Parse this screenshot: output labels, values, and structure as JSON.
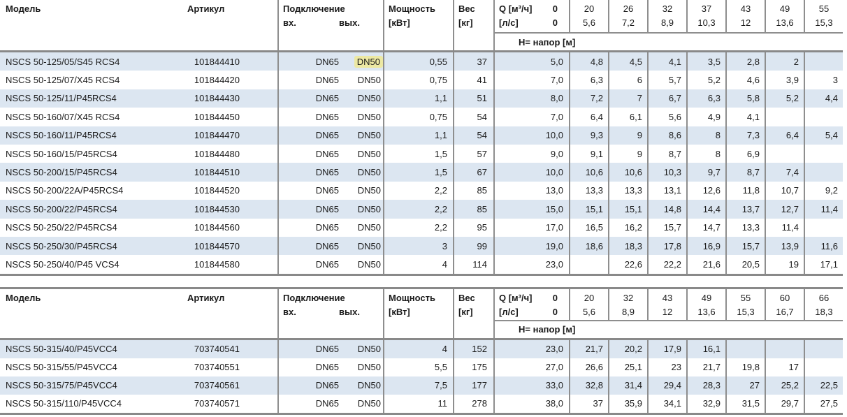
{
  "colors": {
    "row_stripe": "#dce6f1",
    "grid_line": "#8e8e8e",
    "thick_line": "#898989",
    "search_highlight": "#ece8a3",
    "text": "#1a1a1a"
  },
  "tables": [
    {
      "headers": {
        "model": "Модель",
        "article": "Артикул",
        "connection": "Подключение",
        "inlet": "вх.",
        "outlet": "вых.",
        "power_line1": "Мощность",
        "power_line2": "[кВт]",
        "weight_line1": "Вес",
        "weight_line2": "[кг]",
        "q_row1_label": "Q [м³/ч]",
        "q_row1_zero": "0",
        "q_row2_label": "[л/с]",
        "q_row2_zero": "0",
        "head_label": "H= напор [м]",
        "q_cols_m3h": [
          "20",
          "26",
          "32",
          "37",
          "43",
          "49",
          "55"
        ],
        "q_cols_ls": [
          "5,6",
          "7,2",
          "8,9",
          "10,3",
          "12",
          "13,6",
          "15,3"
        ]
      },
      "rows": [
        {
          "model": "NSCS 50-125/05/S45 RCS4",
          "article": "101844410",
          "inlet": "DN65",
          "outlet": "DN50",
          "outlet_highlight": true,
          "power": "0,55",
          "weight": "37",
          "h": [
            "5,0",
            "4,8",
            "4,5",
            "4,1",
            "3,5",
            "2,8",
            "2",
            ""
          ]
        },
        {
          "model": "NSCS 50-125/07/X45 RCS4",
          "article": "101844420",
          "inlet": "DN65",
          "outlet": "DN50",
          "outlet_highlight": false,
          "power": "0,75",
          "weight": "41",
          "h": [
            "7,0",
            "6,3",
            "6",
            "5,7",
            "5,2",
            "4,6",
            "3,9",
            "3"
          ]
        },
        {
          "model": "NSCS 50-125/11/P45RCS4",
          "article": "101844430",
          "inlet": "DN65",
          "outlet": "DN50",
          "outlet_highlight": false,
          "power": "1,1",
          "weight": "51",
          "h": [
            "8,0",
            "7,2",
            "7",
            "6,7",
            "6,3",
            "5,8",
            "5,2",
            "4,4"
          ]
        },
        {
          "model": "NSCS 50-160/07/X45 RCS4",
          "article": "101844450",
          "inlet": "DN65",
          "outlet": "DN50",
          "outlet_highlight": false,
          "power": "0,75",
          "weight": "54",
          "h": [
            "7,0",
            "6,4",
            "6,1",
            "5,6",
            "4,9",
            "4,1",
            "",
            ""
          ]
        },
        {
          "model": "NSCS 50-160/11/P45RCS4",
          "article": "101844470",
          "inlet": "DN65",
          "outlet": "DN50",
          "outlet_highlight": false,
          "power": "1,1",
          "weight": "54",
          "h": [
            "10,0",
            "9,3",
            "9",
            "8,6",
            "8",
            "7,3",
            "6,4",
            "5,4"
          ]
        },
        {
          "model": "NSCS 50-160/15/P45RCS4",
          "article": "101844480",
          "inlet": "DN65",
          "outlet": "DN50",
          "outlet_highlight": false,
          "power": "1,5",
          "weight": "57",
          "h": [
            "9,0",
            "9,1",
            "9",
            "8,7",
            "8",
            "6,9",
            "",
            ""
          ]
        },
        {
          "model": "NSCS 50-200/15/P45RCS4",
          "article": "101844510",
          "inlet": "DN65",
          "outlet": "DN50",
          "outlet_highlight": false,
          "power": "1,5",
          "weight": "67",
          "h": [
            "10,0",
            "10,6",
            "10,6",
            "10,3",
            "9,7",
            "8,7",
            "7,4",
            ""
          ]
        },
        {
          "model": "NSCS 50-200/22A/P45RCS4",
          "article": "101844520",
          "inlet": "DN65",
          "outlet": "DN50",
          "outlet_highlight": false,
          "power": "2,2",
          "weight": "85",
          "h": [
            "13,0",
            "13,3",
            "13,3",
            "13,1",
            "12,6",
            "11,8",
            "10,7",
            "9,2"
          ]
        },
        {
          "model": "NSCS 50-200/22/P45RCS4",
          "article": "101844530",
          "inlet": "DN65",
          "outlet": "DN50",
          "outlet_highlight": false,
          "power": "2,2",
          "weight": "85",
          "h": [
            "15,0",
            "15,1",
            "15,1",
            "14,8",
            "14,4",
            "13,7",
            "12,7",
            "11,4"
          ]
        },
        {
          "model": "NSCS 50-250/22/P45RCS4",
          "article": "101844560",
          "inlet": "DN65",
          "outlet": "DN50",
          "outlet_highlight": false,
          "power": "2,2",
          "weight": "95",
          "h": [
            "17,0",
            "16,5",
            "16,2",
            "15,7",
            "14,7",
            "13,3",
            "11,4",
            ""
          ]
        },
        {
          "model": "NSCS 50-250/30/P45RCS4",
          "article": "101844570",
          "inlet": "DN65",
          "outlet": "DN50",
          "outlet_highlight": false,
          "power": "3",
          "weight": "99",
          "h": [
            "19,0",
            "18,6",
            "18,3",
            "17,8",
            "16,9",
            "15,7",
            "13,9",
            "11,6"
          ]
        },
        {
          "model": "NSCS 50-250/40/P45 VCS4",
          "article": "101844580",
          "inlet": "DN65",
          "outlet": "DN50",
          "outlet_highlight": false,
          "power": "4",
          "weight": "114",
          "h": [
            "23,0",
            "",
            "22,6",
            "22,2",
            "21,6",
            "20,5",
            "19",
            "17,1"
          ]
        }
      ]
    },
    {
      "headers": {
        "model": "Модель",
        "article": "Артикул",
        "connection": "Подключение",
        "inlet": "вх.",
        "outlet": "вых.",
        "power_line1": "Мощность",
        "power_line2": "[кВт]",
        "weight_line1": "Вес",
        "weight_line2": "[кг]",
        "q_row1_label": "Q [м³/ч]",
        "q_row1_zero": "0",
        "q_row2_label": "[л/с]",
        "q_row2_zero": "0",
        "head_label": "H= напор [м]",
        "q_cols_m3h": [
          "20",
          "32",
          "43",
          "49",
          "55",
          "60",
          "66"
        ],
        "q_cols_ls": [
          "5,6",
          "8,9",
          "12",
          "13,6",
          "15,3",
          "16,7",
          "18,3"
        ]
      },
      "rows": [
        {
          "model": "NSCS 50-315/40/P45VCC4",
          "article": "703740541",
          "inlet": "DN65",
          "outlet": "DN50",
          "outlet_highlight": false,
          "power": "4",
          "weight": "152",
          "h": [
            "23,0",
            "21,7",
            "20,2",
            "17,9",
            "16,1",
            "",
            "",
            ""
          ]
        },
        {
          "model": "NSCS 50-315/55/P45VCC4",
          "article": "703740551",
          "inlet": "DN65",
          "outlet": "DN50",
          "outlet_highlight": false,
          "power": "5,5",
          "weight": "175",
          "h": [
            "27,0",
            "26,6",
            "25,1",
            "23",
            "21,7",
            "19,8",
            "17",
            ""
          ]
        },
        {
          "model": "NSCS 50-315/75/P45VCC4",
          "article": "703740561",
          "inlet": "DN65",
          "outlet": "DN50",
          "outlet_highlight": false,
          "power": "7,5",
          "weight": "177",
          "h": [
            "33,0",
            "32,8",
            "31,4",
            "29,4",
            "28,3",
            "27",
            "25,2",
            "22,5"
          ]
        },
        {
          "model": "NSCS 50-315/110/P45VCC4",
          "article": "703740571",
          "inlet": "DN65",
          "outlet": "DN50",
          "outlet_highlight": false,
          "power": "11",
          "weight": "278",
          "h": [
            "38,0",
            "37",
            "35,9",
            "34,1",
            "32,9",
            "31,5",
            "29,7",
            "27,5"
          ]
        }
      ]
    }
  ]
}
